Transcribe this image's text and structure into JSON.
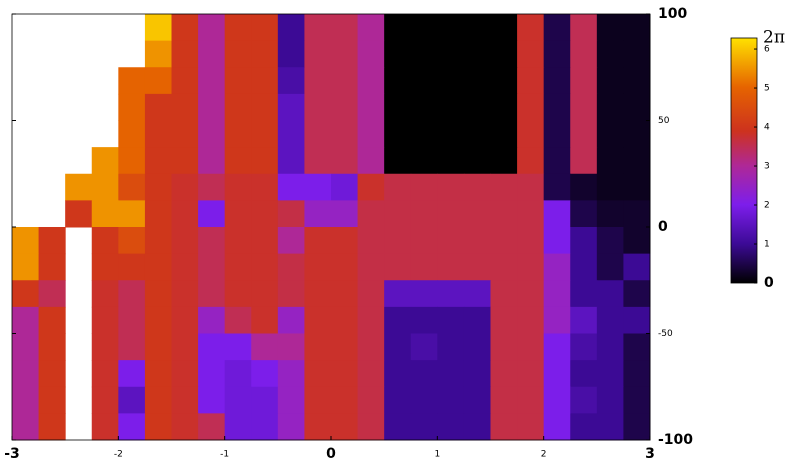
{
  "chart_data": {
    "type": "heatmap",
    "xlim": [
      -3,
      3
    ],
    "ylim": [
      -100,
      100
    ],
    "clim": [
      0,
      6.2832
    ],
    "xticks": [
      -3,
      -2,
      -1,
      0,
      1,
      2,
      3
    ],
    "yticks": [
      100,
      50,
      0,
      -50,
      -100
    ],
    "cticks": [
      0,
      1,
      2,
      3,
      4,
      5,
      6,
      {
        "value": 6.2832,
        "label": "2π"
      }
    ],
    "z": [
      [
        null,
        null,
        null,
        null,
        null,
        6,
        4,
        3,
        4,
        4,
        1,
        3.5,
        3.5,
        3,
        0,
        0,
        0,
        0,
        0,
        3.8,
        0.5,
        3.5,
        0.2,
        0.2
      ],
      [
        null,
        null,
        null,
        null,
        null,
        5.5,
        4,
        3,
        4,
        4,
        1,
        3.5,
        3.5,
        3,
        0,
        0,
        0,
        0,
        0,
        3.8,
        0.5,
        3.5,
        0.2,
        0.2
      ],
      [
        null,
        null,
        null,
        null,
        5,
        5,
        4,
        3,
        4,
        4,
        1.2,
        3.5,
        3.5,
        3,
        0,
        0,
        0,
        0,
        0,
        3.8,
        0.5,
        3.5,
        0.2,
        0.2
      ],
      [
        null,
        null,
        null,
        null,
        5,
        4,
        4,
        3,
        4,
        4,
        1.5,
        3.5,
        3.5,
        3,
        0,
        0,
        0,
        0,
        0,
        3.8,
        0.5,
        3.5,
        0.2,
        0.2
      ],
      [
        null,
        null,
        null,
        null,
        5,
        4,
        4,
        3,
        4,
        4,
        1.5,
        3.5,
        3.5,
        3,
        0,
        0,
        0,
        0,
        0,
        3.8,
        0.5,
        3.5,
        0.2,
        0.2
      ],
      [
        null,
        null,
        null,
        5.5,
        5,
        4,
        4,
        3,
        4,
        4,
        1.5,
        3.5,
        3.5,
        3,
        0,
        0,
        0,
        0,
        0,
        3.8,
        0.5,
        3.5,
        0.2,
        0.2
      ],
      [
        null,
        null,
        5.5,
        5.5,
        4.5,
        4,
        3.8,
        3.5,
        3.8,
        3.8,
        2,
        2,
        1.8,
        3.8,
        3.6,
        3.6,
        3.6,
        3.6,
        3.6,
        3.6,
        0.5,
        0.3,
        0.2,
        0.2
      ],
      [
        null,
        null,
        4,
        5.5,
        5.5,
        4,
        3.8,
        2,
        3.8,
        3.8,
        3.6,
        2.5,
        2.5,
        3.6,
        3.6,
        3.6,
        3.6,
        3.6,
        3.6,
        3.6,
        2,
        0.5,
        0.3,
        0.3
      ],
      [
        5.5,
        4,
        null,
        4,
        4.5,
        4,
        3.8,
        3.5,
        3.8,
        3.8,
        3,
        3.8,
        3.8,
        3.6,
        3.6,
        3.6,
        3.6,
        3.6,
        3.6,
        3.6,
        2,
        1,
        0.5,
        0.3
      ],
      [
        5.5,
        4,
        null,
        4,
        4,
        4,
        3.8,
        3.5,
        3.8,
        3.8,
        3.6,
        3.8,
        3.8,
        3.6,
        3.6,
        3.6,
        3.6,
        3.6,
        3.6,
        3.6,
        2.5,
        1,
        0.5,
        1
      ],
      [
        4,
        3.5,
        null,
        3.8,
        3.5,
        4,
        3.8,
        3.5,
        3.8,
        3.8,
        3.6,
        3.8,
        3.8,
        3.6,
        1.5,
        1.5,
        1.5,
        1.5,
        3.6,
        3.6,
        2.5,
        1,
        1,
        0.5
      ],
      [
        3,
        4,
        null,
        3.8,
        3.5,
        4,
        3.8,
        2.5,
        3.5,
        3.8,
        2.5,
        3.8,
        3.8,
        3.6,
        1,
        1,
        1,
        1,
        3.6,
        3.6,
        2.5,
        1.5,
        1,
        1
      ],
      [
        3,
        4,
        null,
        3.8,
        3.5,
        4,
        3.8,
        2,
        2,
        3,
        3,
        3.8,
        3.8,
        3.6,
        1,
        1.2,
        1,
        1,
        3.6,
        3.6,
        2,
        1.2,
        1,
        0.5
      ],
      [
        3,
        4,
        null,
        3.8,
        2,
        4,
        3.8,
        2,
        1.8,
        2,
        2.5,
        3.8,
        3.8,
        3.6,
        1,
        1,
        1,
        1,
        3.6,
        3.6,
        2,
        1,
        1,
        0.5
      ],
      [
        3,
        4,
        null,
        3.8,
        1.5,
        4,
        3.8,
        2,
        1.8,
        1.8,
        2.5,
        3.8,
        3.8,
        3.6,
        1,
        1,
        1,
        1,
        3.6,
        3.6,
        2,
        1.2,
        1,
        0.5
      ],
      [
        3,
        4,
        null,
        3.8,
        2,
        4,
        3.8,
        3.5,
        1.8,
        1.8,
        2.5,
        3.8,
        3.8,
        3.6,
        1,
        1,
        1,
        1,
        3.6,
        3.6,
        2,
        1,
        1,
        0.5
      ]
    ]
  }
}
